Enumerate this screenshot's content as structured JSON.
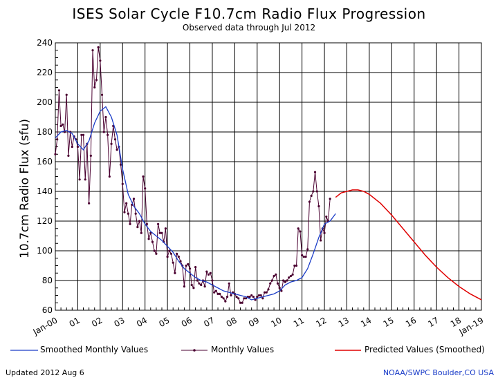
{
  "header": {
    "title": "ISES Solar Cycle F10.7cm Radio Flux Progression",
    "subtitle": "Observed data through Jul 2012"
  },
  "footer": {
    "updated": "Updated 2012 Aug  6",
    "credit": "NOAA/SWPC Boulder,CO USA"
  },
  "legend": {
    "smoothed": "Smoothed Monthly Values",
    "monthly": "Monthly Values",
    "predicted": "Predicted Values (Smoothed)"
  },
  "colors": {
    "smoothed": "#1a3cc8",
    "monthly": "#4a0030",
    "predicted": "#e00000",
    "grid": "#000000"
  },
  "chart_data": {
    "type": "line",
    "title": "ISES Solar Cycle F10.7cm Radio Flux Progression",
    "subtitle": "Observed data through Jul 2012",
    "ylabel": "10.7cm Radio Flux (sfu)",
    "xlabel": "",
    "x_ticks": [
      "Jan-00",
      "01",
      "02",
      "03",
      "04",
      "05",
      "06",
      "07",
      "08",
      "09",
      "10",
      "11",
      "12",
      "13",
      "14",
      "15",
      "16",
      "17",
      "18",
      "Jan-19"
    ],
    "y_ticks": [
      60,
      80,
      100,
      120,
      140,
      160,
      180,
      200,
      220,
      240
    ],
    "xlim": [
      2000.0,
      2019.0
    ],
    "ylim": [
      60,
      240
    ],
    "grid": true,
    "legend_position": "bottom",
    "series": [
      {
        "name": "Monthly Values",
        "x_start": 2000.0,
        "x_step": 0.0833333,
        "values": [
          165,
          175,
          208,
          184,
          185,
          180,
          205,
          164,
          180,
          170,
          177,
          175,
          170,
          148,
          178,
          178,
          148,
          172,
          132,
          164,
          235,
          210,
          215,
          237,
          228,
          205,
          180,
          190,
          178,
          150,
          172,
          184,
          175,
          168,
          170,
          158,
          145,
          126,
          132,
          125,
          118,
          131,
          135,
          125,
          116,
          120,
          112,
          150,
          142,
          118,
          108,
          112,
          106,
          100,
          98,
          118,
          112,
          112,
          106,
          115,
          96,
          100,
          98,
          92,
          85,
          98,
          96,
          93,
          90,
          76,
          90,
          91,
          88,
          77,
          75,
          89,
          80,
          78,
          77,
          80,
          76,
          86,
          84,
          85,
          80,
          72,
          73,
          71,
          71,
          69,
          68,
          66,
          69,
          78,
          70,
          72,
          71,
          69,
          68,
          65,
          65,
          68,
          68,
          69,
          69,
          70,
          69,
          67,
          69,
          70,
          70,
          68,
          72,
          72,
          74,
          78,
          80,
          83,
          84,
          78,
          75,
          73,
          80,
          79,
          80,
          82,
          83,
          84,
          90,
          90,
          115,
          113,
          97,
          96,
          96,
          101,
          133,
          137,
          140,
          153,
          140,
          130,
          107,
          115,
          112,
          123,
          120,
          135
        ]
      },
      {
        "name": "Smoothed Monthly Values",
        "points": [
          [
            2000.0,
            176
          ],
          [
            2000.25,
            180
          ],
          [
            2000.5,
            181
          ],
          [
            2000.75,
            179
          ],
          [
            2001.0,
            172
          ],
          [
            2001.25,
            168
          ],
          [
            2001.5,
            174
          ],
          [
            2001.75,
            186
          ],
          [
            2002.0,
            194
          ],
          [
            2002.25,
            197
          ],
          [
            2002.5,
            190
          ],
          [
            2002.75,
            178
          ],
          [
            2003.0,
            155
          ],
          [
            2003.25,
            138
          ],
          [
            2003.5,
            130
          ],
          [
            2003.75,
            125
          ],
          [
            2004.0,
            118
          ],
          [
            2004.25,
            113
          ],
          [
            2004.5,
            110
          ],
          [
            2004.75,
            107
          ],
          [
            2005.0,
            103
          ],
          [
            2005.25,
            99
          ],
          [
            2005.5,
            93
          ],
          [
            2005.75,
            88
          ],
          [
            2006.0,
            85
          ],
          [
            2006.25,
            82
          ],
          [
            2006.5,
            80
          ],
          [
            2006.75,
            79
          ],
          [
            2007.0,
            77
          ],
          [
            2007.25,
            75
          ],
          [
            2007.5,
            73
          ],
          [
            2007.75,
            72
          ],
          [
            2008.0,
            71
          ],
          [
            2008.25,
            70
          ],
          [
            2008.5,
            69
          ],
          [
            2008.75,
            67
          ],
          [
            2009.0,
            68
          ],
          [
            2009.25,
            69
          ],
          [
            2009.5,
            70
          ],
          [
            2009.75,
            71
          ],
          [
            2010.0,
            73
          ],
          [
            2010.25,
            77
          ],
          [
            2010.5,
            79
          ],
          [
            2010.75,
            80
          ],
          [
            2011.0,
            82
          ],
          [
            2011.25,
            88
          ],
          [
            2011.5,
            98
          ],
          [
            2011.75,
            109
          ],
          [
            2012.0,
            118
          ],
          [
            2012.25,
            120
          ],
          [
            2012.5,
            125
          ]
        ]
      },
      {
        "name": "Predicted Values (Smoothed)",
        "points": [
          [
            2012.5,
            136
          ],
          [
            2012.75,
            139
          ],
          [
            2013.0,
            140
          ],
          [
            2013.25,
            141
          ],
          [
            2013.5,
            141
          ],
          [
            2013.75,
            140
          ],
          [
            2014.0,
            138
          ],
          [
            2014.5,
            132
          ],
          [
            2015.0,
            124
          ],
          [
            2015.5,
            115
          ],
          [
            2016.0,
            106
          ],
          [
            2016.5,
            97
          ],
          [
            2017.0,
            89
          ],
          [
            2017.5,
            82
          ],
          [
            2018.0,
            76
          ],
          [
            2018.5,
            71
          ],
          [
            2019.0,
            67
          ]
        ]
      }
    ]
  }
}
